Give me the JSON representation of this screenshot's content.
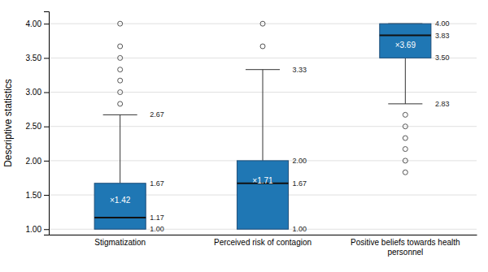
{
  "chart_data": {
    "type": "box",
    "categories": [
      "Stigmatization",
      "Perceived risk of contagion",
      "Positive beliefs towards health personnel"
    ],
    "ylabel": "Descriptive statistics",
    "ylim": [
      0.92,
      4.18
    ],
    "yticks": [
      {
        "value": 1.0,
        "label": "1.00"
      },
      {
        "value": 1.5,
        "label": "1.50"
      },
      {
        "value": 2.0,
        "label": "2.00"
      },
      {
        "value": 2.5,
        "label": "2.50"
      },
      {
        "value": 3.0,
        "label": "3.00"
      },
      {
        "value": 3.5,
        "label": "3.50"
      },
      {
        "value": 4.0,
        "label": "4.00"
      }
    ],
    "grid": true,
    "boxes": [
      {
        "q1": 1.0,
        "median": 1.17,
        "q3": 1.67,
        "whisker_low": 1.0,
        "whisker_high": 2.67,
        "mean": 1.42,
        "mean_label": "×1.42",
        "outliers": [
          2.83,
          3.0,
          3.17,
          3.33,
          3.5,
          3.67,
          4.0
        ],
        "ann_labels": [
          {
            "value": 2.67,
            "label": "2.67"
          },
          {
            "value": 1.67,
            "label": "1.67"
          },
          {
            "value": 1.17,
            "label": "1.17"
          },
          {
            "value": 1.0,
            "label": "1.00"
          }
        ]
      },
      {
        "q1": 1.0,
        "median": 1.67,
        "q3": 2.0,
        "whisker_low": 1.0,
        "whisker_high": 3.33,
        "mean": 1.71,
        "mean_label": "×1.71",
        "outliers": [
          3.67,
          4.0
        ],
        "ann_labels": [
          {
            "value": 3.33,
            "label": "3.33"
          },
          {
            "value": 2.0,
            "label": "2.00"
          },
          {
            "value": 1.67,
            "label": "1.67"
          },
          {
            "value": 1.0,
            "label": "1.00"
          }
        ]
      },
      {
        "q1": 3.5,
        "median": 3.83,
        "q3": 4.0,
        "whisker_low": 2.83,
        "whisker_high": 4.0,
        "mean": 3.69,
        "mean_label": "×3.69",
        "outliers": [
          1.83,
          2.0,
          2.17,
          2.33,
          2.5,
          2.67
        ],
        "ann_labels": [
          {
            "value": 4.0,
            "label": "4.00"
          },
          {
            "value": 3.83,
            "label": "3.83"
          },
          {
            "value": 3.5,
            "label": "3.50"
          },
          {
            "value": 2.83,
            "label": "2.83"
          }
        ]
      }
    ]
  }
}
